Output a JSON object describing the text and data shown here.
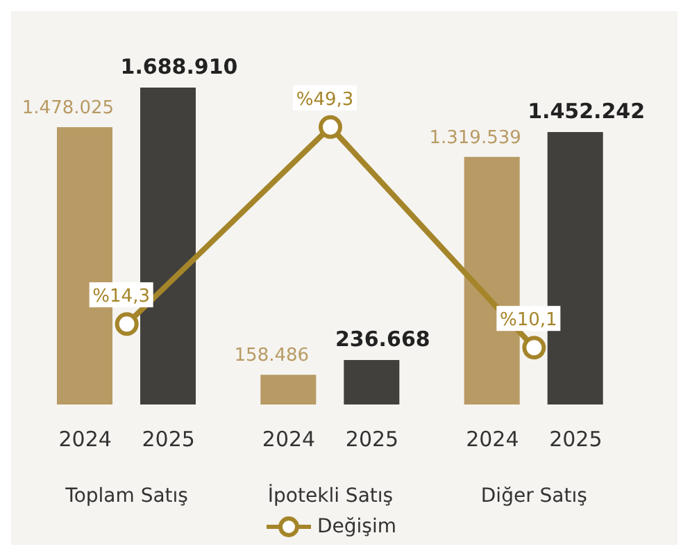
{
  "chart_data": {
    "type": "bar",
    "categories": [
      "Toplam Satış",
      "İpotekli Satış",
      "Diğer Satış"
    ],
    "series": [
      {
        "name": "2024",
        "color": "#b89a64",
        "values": [
          1478025,
          158486,
          1319539
        ],
        "value_labels": [
          "1.478.025",
          "158.486",
          "1.319.539"
        ]
      },
      {
        "name": "2025",
        "color": "#41403d",
        "values": [
          1688910,
          236668,
          1452242
        ],
        "value_labels": [
          "1.688.910",
          "236.668",
          "1.452.242"
        ]
      },
      {
        "name": "Değişim",
        "type": "line",
        "axis": "y2",
        "color": "#a5852a",
        "values": [
          14.3,
          49.3,
          10.1
        ],
        "value_labels": [
          "%14,3",
          "%49,3",
          "%10,1"
        ]
      }
    ],
    "marker": "circle",
    "legend": "bottom"
  }
}
